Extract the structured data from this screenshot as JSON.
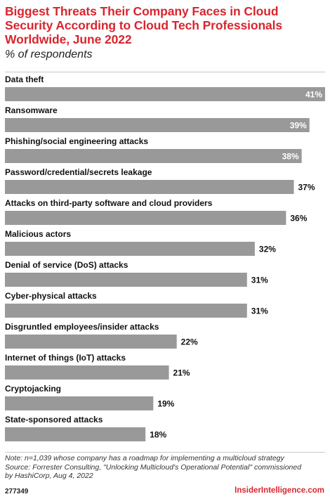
{
  "header": {
    "title": "Biggest Threats Their Company Faces in Cloud Security According to Cloud Tech Professionals Worldwide, June 2022",
    "subtitle": "% of respondents"
  },
  "chart_data": {
    "type": "bar",
    "orientation": "horizontal",
    "title": "Biggest Threats Their Company Faces in Cloud Security According to Cloud Tech Professionals Worldwide, June 2022",
    "subtitle": "% of respondents",
    "xlabel": "",
    "ylabel": "",
    "xlim": [
      0,
      41
    ],
    "grid": false,
    "legend": "none",
    "categories": [
      "Data theft",
      "Ransomware",
      "Phishing/social engineering attacks",
      "Password/credential/secrets leakage",
      "Attacks on third-party software and cloud providers",
      "Malicious actors",
      "Denial of service (DoS) attacks",
      "Cyber-physical attacks",
      "Disgruntled employees/insider attacks",
      "Internet of things (IoT) attacks",
      "Cryptojacking",
      "State-sponsored attacks"
    ],
    "values": [
      41,
      39,
      38,
      37,
      36,
      32,
      31,
      31,
      22,
      21,
      19,
      18
    ],
    "value_labels": [
      "41%",
      "39%",
      "38%",
      "37%",
      "36%",
      "32%",
      "31%",
      "31%",
      "22%",
      "21%",
      "19%",
      "18%"
    ],
    "bar_color": "#999999",
    "label_inside_color": "#ffffff",
    "label_outside_color": "#111111"
  },
  "footer": {
    "note": "Note: n=1,039 whose company has a roadmap for implementing a multicloud strategy",
    "source_line1": "Source: Forrester Consulting, \"Unlocking Multicloud's Operational Potential\" commissioned",
    "source_line2": "by HashiCorp, Aug 4, 2022",
    "chart_id": "277349",
    "brand": "InsiderIntelligence.com"
  },
  "colors": {
    "accent": "#d7262e",
    "bar": "#999999",
    "rule": "#c8c8c8"
  }
}
